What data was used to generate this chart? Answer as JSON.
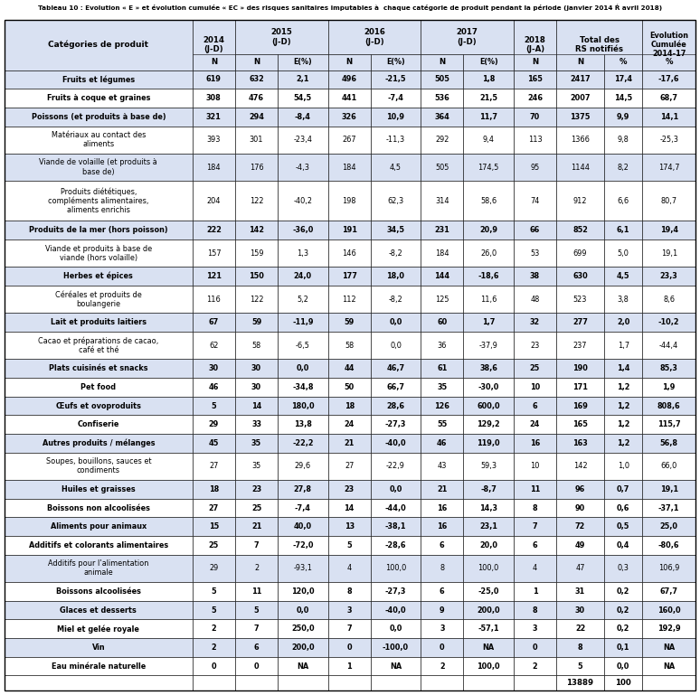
{
  "title": "Tableau 10 : Evolution « E » et évolution cumulée « EC » des risques sanitaires imputables à  chaque catégorie de produit pendant la période (janvier 2014 Ŕ avril 2018)",
  "rows": [
    [
      "Fruits et légumes",
      "619",
      "632",
      "2,1",
      "496",
      "-21,5",
      "505",
      "1,8",
      "165",
      "2417",
      "17,4",
      "-17,6",
      true,
      true
    ],
    [
      "Fruits à coque et graines",
      "308",
      "476",
      "54,5",
      "441",
      "-7,4",
      "536",
      "21,5",
      "246",
      "2007",
      "14,5",
      "68,7",
      false,
      true
    ],
    [
      "Poissons (et produits à base de)",
      "321",
      "294",
      "-8,4",
      "326",
      "10,9",
      "364",
      "11,7",
      "70",
      "1375",
      "9,9",
      "14,1",
      true,
      true
    ],
    [
      "Matériaux au contact des\naliments",
      "393",
      "301",
      "-23,4",
      "267",
      "-11,3",
      "292",
      "9,4",
      "113",
      "1366",
      "9,8",
      "-25,3",
      false,
      false
    ],
    [
      "Viande de volaille (et produits à\nbase de)",
      "184",
      "176",
      "-4,3",
      "184",
      "4,5",
      "505",
      "174,5",
      "95",
      "1144",
      "8,2",
      "174,7",
      true,
      false
    ],
    [
      "Produits diététiques,\ncompléments alimentaires,\naliments enrichis",
      "204",
      "122",
      "-40,2",
      "198",
      "62,3",
      "314",
      "58,6",
      "74",
      "912",
      "6,6",
      "80,7",
      false,
      false
    ],
    [
      "Produits de la mer (hors poisson)",
      "222",
      "142",
      "-36,0",
      "191",
      "34,5",
      "231",
      "20,9",
      "66",
      "852",
      "6,1",
      "19,4",
      true,
      true
    ],
    [
      "Viande et produits à base de\nviande (hors volaille)",
      "157",
      "159",
      "1,3",
      "146",
      "-8,2",
      "184",
      "26,0",
      "53",
      "699",
      "5,0",
      "19,1",
      false,
      false
    ],
    [
      "Herbes et épices",
      "121",
      "150",
      "24,0",
      "177",
      "18,0",
      "144",
      "-18,6",
      "38",
      "630",
      "4,5",
      "23,3",
      true,
      true
    ],
    [
      "Céréales et produits de\nboulangerie",
      "116",
      "122",
      "5,2",
      "112",
      "-8,2",
      "125",
      "11,6",
      "48",
      "523",
      "3,8",
      "8,6",
      false,
      false
    ],
    [
      "Lait et produits laitiers",
      "67",
      "59",
      "-11,9",
      "59",
      "0,0",
      "60",
      "1,7",
      "32",
      "277",
      "2,0",
      "-10,2",
      true,
      true
    ],
    [
      "Cacao et préparations de cacao,\ncafé et thé",
      "62",
      "58",
      "-6,5",
      "58",
      "0,0",
      "36",
      "-37,9",
      "23",
      "237",
      "1,7",
      "-44,4",
      false,
      false
    ],
    [
      "Plats cuisinés et snacks",
      "30",
      "30",
      "0,0",
      "44",
      "46,7",
      "61",
      "38,6",
      "25",
      "190",
      "1,4",
      "85,3",
      true,
      true
    ],
    [
      "Pet food",
      "46",
      "30",
      "-34,8",
      "50",
      "66,7",
      "35",
      "-30,0",
      "10",
      "171",
      "1,2",
      "1,9",
      false,
      true
    ],
    [
      "Œufs et ovoproduits",
      "5",
      "14",
      "180,0",
      "18",
      "28,6",
      "126",
      "600,0",
      "6",
      "169",
      "1,2",
      "808,6",
      true,
      true
    ],
    [
      "Confiserie",
      "29",
      "33",
      "13,8",
      "24",
      "-27,3",
      "55",
      "129,2",
      "24",
      "165",
      "1,2",
      "115,7",
      false,
      true
    ],
    [
      "Autres produits / mélanges",
      "45",
      "35",
      "-22,2",
      "21",
      "-40,0",
      "46",
      "119,0",
      "16",
      "163",
      "1,2",
      "56,8",
      true,
      true
    ],
    [
      "Soupes, bouillons, sauces et\ncondiments",
      "27",
      "35",
      "29,6",
      "27",
      "-22,9",
      "43",
      "59,3",
      "10",
      "142",
      "1,0",
      "66,0",
      false,
      false
    ],
    [
      "Huiles et graisses",
      "18",
      "23",
      "27,8",
      "23",
      "0,0",
      "21",
      "-8,7",
      "11",
      "96",
      "0,7",
      "19,1",
      true,
      true
    ],
    [
      "Boissons non alcoolisées",
      "27",
      "25",
      "-7,4",
      "14",
      "-44,0",
      "16",
      "14,3",
      "8",
      "90",
      "0,6",
      "-37,1",
      false,
      true
    ],
    [
      "Aliments pour animaux",
      "15",
      "21",
      "40,0",
      "13",
      "-38,1",
      "16",
      "23,1",
      "7",
      "72",
      "0,5",
      "25,0",
      true,
      true
    ],
    [
      "Additifs et colorants alimentaires",
      "25",
      "7",
      "-72,0",
      "5",
      "-28,6",
      "6",
      "20,0",
      "6",
      "49",
      "0,4",
      "-80,6",
      false,
      true
    ],
    [
      "Additifs pour l’alimentation\nanimale",
      "29",
      "2",
      "-93,1",
      "4",
      "100,0",
      "8",
      "100,0",
      "4",
      "47",
      "0,3",
      "106,9",
      true,
      false
    ],
    [
      "Boissons alcoolisées",
      "5",
      "11",
      "120,0",
      "8",
      "-27,3",
      "6",
      "-25,0",
      "1",
      "31",
      "0,2",
      "67,7",
      false,
      true
    ],
    [
      "Glaces et desserts",
      "5",
      "5",
      "0,0",
      "3",
      "-40,0",
      "9",
      "200,0",
      "8",
      "30",
      "0,2",
      "160,0",
      true,
      true
    ],
    [
      "Miel et gelée royale",
      "2",
      "7",
      "250,0",
      "7",
      "0,0",
      "3",
      "-57,1",
      "3",
      "22",
      "0,2",
      "192,9",
      false,
      true
    ],
    [
      "Vin",
      "2",
      "6",
      "200,0",
      "0",
      "-100,0",
      "0",
      "NA",
      "0",
      "8",
      "0,1",
      "NA",
      true,
      true
    ],
    [
      "Eau minérale naturelle",
      "0",
      "0",
      "NA",
      "1",
      "NA",
      "2",
      "100,0",
      "2",
      "5",
      "0,0",
      "NA",
      false,
      true
    ]
  ],
  "bg_color_shaded": "#d9e1f2",
  "bg_color_white": "#ffffff",
  "border_color": "#000000",
  "header_bg": "#d9e1f2",
  "figsize": [
    7.74,
    7.69
  ],
  "dpi": 100
}
